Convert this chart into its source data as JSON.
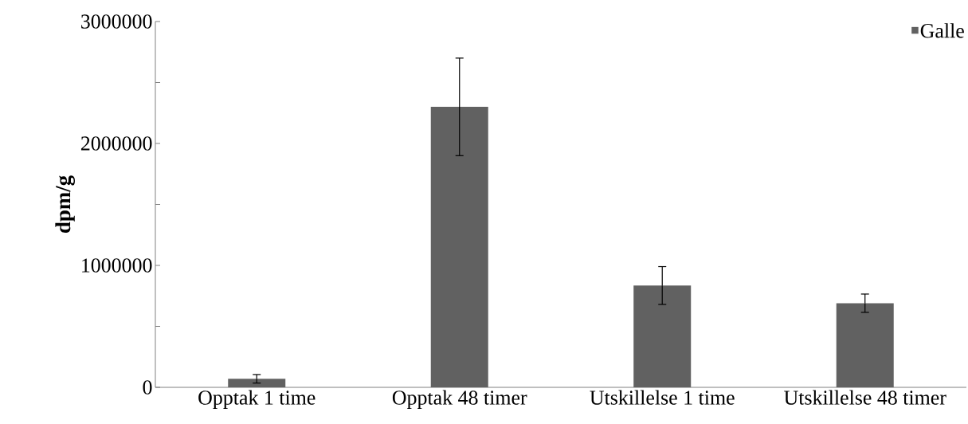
{
  "chart_data": {
    "type": "bar",
    "ylabel": "dpm/g",
    "categories": [
      "Opptak 1  time",
      "Opptak 48 timer",
      "Utskillelse 1 time",
      "Utskillelse 48 timer"
    ],
    "series": [
      {
        "name": "Galle",
        "color": "#616161",
        "values": [
          70000,
          2300000,
          835000,
          690000
        ],
        "errors": [
          35000,
          400000,
          155000,
          75000
        ]
      }
    ],
    "ylim": [
      0,
      3000000
    ],
    "yticks": [
      0,
      {
        "value": 500000,
        "label": null
      },
      1000000,
      {
        "value": 1500000,
        "label": null
      },
      2000000,
      {
        "value": 2500000,
        "label": null
      },
      3000000
    ],
    "grid": false,
    "legend": "top right"
  }
}
